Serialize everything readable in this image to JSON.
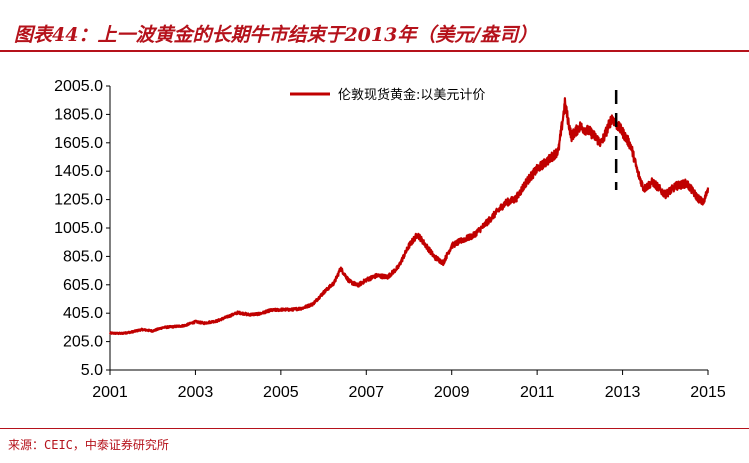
{
  "header": {
    "title": "图表44：上一波黄金的长期牛市结束于2013年（美元/盎司）"
  },
  "footer": {
    "source": "来源：CEIC，中泰证券研究所"
  },
  "colors": {
    "accent": "#b5121b",
    "series": "#c00000"
  },
  "chart_data": {
    "type": "line",
    "title": "",
    "xlabel": "",
    "ylabel": "",
    "xlim": [
      2001,
      2015
    ],
    "ylim": [
      5,
      2005
    ],
    "x_ticks": [
      "2001",
      "2003",
      "2005",
      "2007",
      "2009",
      "2011",
      "2013",
      "2015"
    ],
    "y_ticks": [
      "2005.0",
      "1805.0",
      "1605.0",
      "1405.0",
      "1205.0",
      "1005.0",
      "805.0",
      "605.0",
      "405.0",
      "205.0",
      "5.0"
    ],
    "legend": "top-center",
    "grid": false,
    "series": [
      {
        "name": "伦敦现货黄金:以美元计价",
        "x": [
          2001.0,
          2001.25,
          2001.5,
          2001.75,
          2002.0,
          2002.25,
          2002.5,
          2002.75,
          2003.0,
          2003.2,
          2003.5,
          2003.75,
          2004.0,
          2004.25,
          2004.5,
          2004.75,
          2005.0,
          2005.25,
          2005.5,
          2005.75,
          2006.0,
          2006.25,
          2006.4,
          2006.6,
          2006.8,
          2007.0,
          2007.25,
          2007.5,
          2007.75,
          2008.0,
          2008.2,
          2008.4,
          2008.6,
          2008.8,
          2009.0,
          2009.25,
          2009.5,
          2009.75,
          2010.0,
          2010.25,
          2010.5,
          2010.75,
          2011.0,
          2011.25,
          2011.5,
          2011.65,
          2011.8,
          2012.0,
          2012.25,
          2012.5,
          2012.75,
          2012.85,
          2013.0,
          2013.2,
          2013.35,
          2013.5,
          2013.7,
          2014.0,
          2014.25,
          2014.5,
          2014.75,
          2014.9,
          2015.0
        ],
        "values": [
          265,
          262,
          272,
          290,
          280,
          305,
          310,
          318,
          345,
          335,
          350,
          380,
          410,
          395,
          400,
          425,
          430,
          430,
          440,
          470,
          550,
          620,
          720,
          630,
          600,
          640,
          670,
          660,
          730,
          880,
          960,
          880,
          800,
          760,
          880,
          920,
          950,
          1020,
          1100,
          1180,
          1210,
          1330,
          1420,
          1480,
          1550,
          1880,
          1650,
          1720,
          1680,
          1600,
          1780,
          1740,
          1680,
          1580,
          1400,
          1280,
          1330,
          1240,
          1300,
          1320,
          1220,
          1180,
          1290
        ]
      }
    ],
    "annotations": [
      {
        "type": "vertical-dashed-line",
        "x": 2012.85
      }
    ]
  }
}
